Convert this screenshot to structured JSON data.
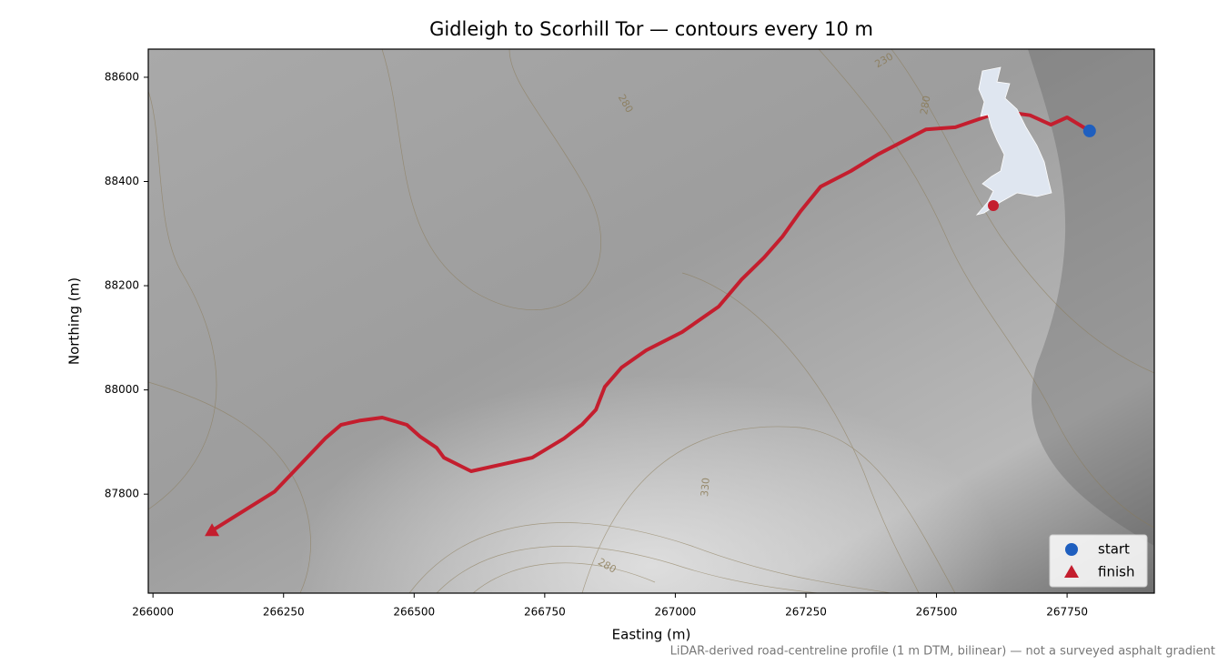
{
  "chart_data": {
    "type": "route",
    "title": "Gidleigh to Scorhill Tor — contours every 10 m",
    "x_label": "Easting (m)",
    "y_label": "Northing (m)",
    "footnote": "LiDAR-derived road-centreline profile (1 m DTM, bilinear) — not a surveyed asphalt gradient",
    "x": [
      267793,
      267750,
      267719,
      267679,
      267644,
      267597,
      267536,
      267480,
      267388,
      267336,
      267278,
      267240,
      267205,
      267170,
      267127,
      267083,
      267013,
      266944,
      266897,
      266865,
      266848,
      266822,
      266787,
      266726,
      266609,
      266557,
      266543,
      266512,
      266486,
      266439,
      266395,
      266360,
      266331,
      266233,
      266113
    ],
    "y": [
      88497,
      88523,
      88509,
      88527,
      88532,
      88525,
      88504,
      88500,
      88452,
      88420,
      88390,
      88343,
      88294,
      88254,
      88212,
      88160,
      88111,
      88076,
      88043,
      88006,
      87962,
      87934,
      87907,
      87870,
      87844,
      87870,
      87889,
      87910,
      87933,
      87947,
      87941,
      87933,
      87908,
      87805,
      87730
    ],
    "color": "#c41e2e",
    "markers": [
      {
        "name": "start",
        "x": 267793,
        "y": 88497,
        "color": "#1f5fbf",
        "marker": "circle"
      },
      {
        "name": "finish",
        "x": 266113,
        "y": 87730,
        "color": "#c41e2e",
        "marker": "triangle"
      }
    ],
    "contour_labels": [
      "230",
      "280",
      "280",
      "330",
      "280"
    ],
    "xlim": [
      265991,
      267917
    ],
    "ylim": [
      87610,
      88654
    ],
    "xticks": [
      266000,
      266250,
      266500,
      266750,
      267000,
      267250,
      267500,
      267750
    ],
    "yticks": [
      87800,
      88000,
      88200,
      88400,
      88600
    ],
    "legend": "lower right"
  }
}
